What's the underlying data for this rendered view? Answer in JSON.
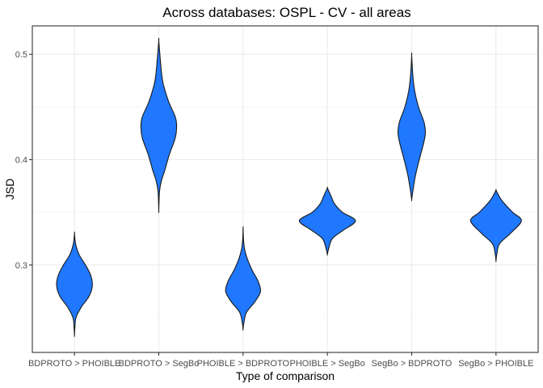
{
  "chart_data": {
    "type": "violin",
    "title": "Across databases: OSPL - CV - all areas",
    "xlabel": "Type of comparison",
    "ylabel": "JSD",
    "ylim": [
      0.217,
      0.527
    ],
    "yticks": [
      0.3,
      0.4,
      0.5
    ],
    "grid": true,
    "fill_color": "#1f78ff",
    "categories": [
      "BDPROTO > PHOIBLE",
      "BDPROTO > SegBo",
      "PHOIBLE > BDPROTO",
      "PHOIBLE > SegBo",
      "SegBo > BDPROTO",
      "SegBo > PHOIBLE"
    ],
    "violins": [
      {
        "category": "BDPROTO > PHOIBLE",
        "min": 0.233,
        "max": 0.33,
        "profile": [
          [
            0.233,
            0.0
          ],
          [
            0.24,
            0.01
          ],
          [
            0.25,
            0.04
          ],
          [
            0.26,
            0.18
          ],
          [
            0.27,
            0.38
          ],
          [
            0.28,
            0.47
          ],
          [
            0.29,
            0.43
          ],
          [
            0.3,
            0.29
          ],
          [
            0.31,
            0.12
          ],
          [
            0.32,
            0.03
          ],
          [
            0.33,
            0.0
          ]
        ]
      },
      {
        "category": "BDPROTO > SegBo",
        "min": 0.352,
        "max": 0.513,
        "profile": [
          [
            0.352,
            0.0
          ],
          [
            0.37,
            0.02
          ],
          [
            0.38,
            0.07
          ],
          [
            0.39,
            0.16
          ],
          [
            0.405,
            0.28
          ],
          [
            0.42,
            0.43
          ],
          [
            0.43,
            0.47
          ],
          [
            0.44,
            0.44
          ],
          [
            0.455,
            0.26
          ],
          [
            0.47,
            0.13
          ],
          [
            0.48,
            0.08
          ],
          [
            0.495,
            0.04
          ],
          [
            0.513,
            0.0
          ]
        ]
      },
      {
        "category": "PHOIBLE > BDPROTO",
        "min": 0.239,
        "max": 0.335,
        "profile": [
          [
            0.239,
            0.0
          ],
          [
            0.245,
            0.02
          ],
          [
            0.255,
            0.09
          ],
          [
            0.265,
            0.31
          ],
          [
            0.275,
            0.46
          ],
          [
            0.285,
            0.39
          ],
          [
            0.295,
            0.24
          ],
          [
            0.305,
            0.12
          ],
          [
            0.315,
            0.04
          ],
          [
            0.325,
            0.01
          ],
          [
            0.335,
            0.0
          ]
        ]
      },
      {
        "category": "PHOIBLE > SegBo",
        "min": 0.31,
        "max": 0.373,
        "profile": [
          [
            0.31,
            0.0
          ],
          [
            0.315,
            0.03
          ],
          [
            0.325,
            0.13
          ],
          [
            0.333,
            0.42
          ],
          [
            0.342,
            0.74
          ],
          [
            0.35,
            0.4
          ],
          [
            0.358,
            0.19
          ],
          [
            0.366,
            0.09
          ],
          [
            0.373,
            0.0
          ]
        ]
      },
      {
        "category": "SegBo > BDPROTO",
        "min": 0.362,
        "max": 0.499,
        "profile": [
          [
            0.362,
            0.0
          ],
          [
            0.37,
            0.03
          ],
          [
            0.385,
            0.1
          ],
          [
            0.4,
            0.2
          ],
          [
            0.415,
            0.31
          ],
          [
            0.425,
            0.36
          ],
          [
            0.435,
            0.33
          ],
          [
            0.45,
            0.18
          ],
          [
            0.465,
            0.08
          ],
          [
            0.48,
            0.03
          ],
          [
            0.499,
            0.0
          ]
        ]
      },
      {
        "category": "SegBo > PHOIBLE",
        "min": 0.304,
        "max": 0.371,
        "profile": [
          [
            0.304,
            0.0
          ],
          [
            0.31,
            0.02
          ],
          [
            0.32,
            0.09
          ],
          [
            0.33,
            0.38
          ],
          [
            0.342,
            0.67
          ],
          [
            0.35,
            0.44
          ],
          [
            0.36,
            0.18
          ],
          [
            0.366,
            0.07
          ],
          [
            0.371,
            0.0
          ]
        ]
      }
    ]
  }
}
